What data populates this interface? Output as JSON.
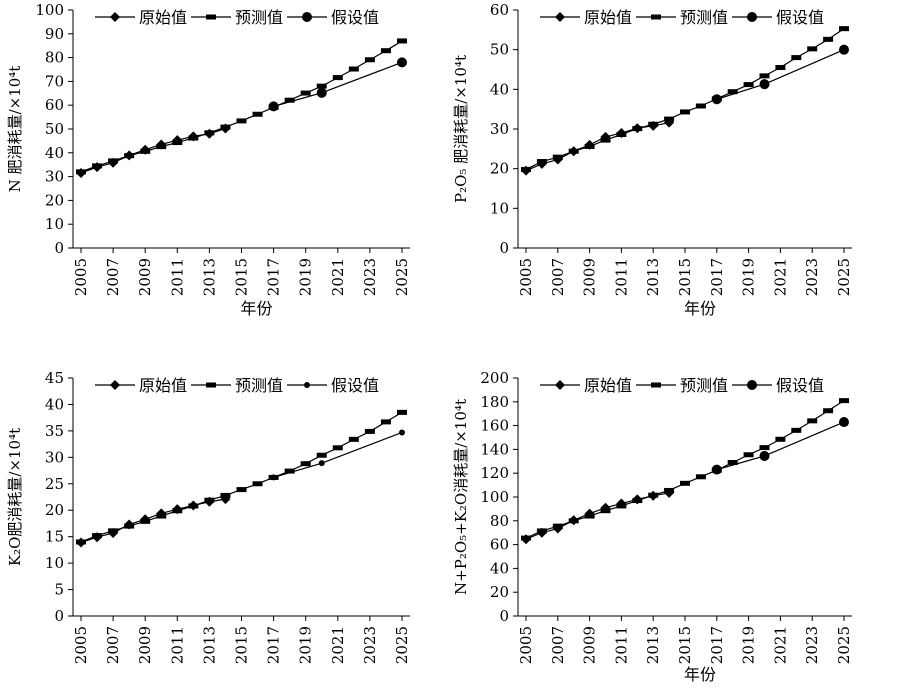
{
  "chart_data": [
    {
      "type": "line",
      "xlabel": "年份",
      "ylabel": "N 肥消耗量/×10⁴t",
      "ylim": [
        0,
        100
      ],
      "ytick_step": 10,
      "xticks": [
        "2005",
        "2007",
        "2009",
        "2011",
        "2013",
        "2015",
        "2017",
        "2019",
        "2021",
        "2023",
        "2025"
      ],
      "xlim": [
        2005,
        2025
      ],
      "legend": [
        "原始值",
        "预测值",
        "假设值"
      ],
      "series": [
        {
          "name": "原始值",
          "marker": "diamond",
          "x": [
            2005,
            2006,
            2007,
            2008,
            2009,
            2010,
            2011,
            2012,
            2013,
            2014
          ],
          "y": [
            31.5,
            34.0,
            35.8,
            38.9,
            41.3,
            43.5,
            45.3,
            46.9,
            48.0,
            50.2
          ]
        },
        {
          "name": "预测值",
          "marker": "dash",
          "x": [
            2005,
            2006,
            2007,
            2008,
            2009,
            2010,
            2011,
            2012,
            2013,
            2014,
            2015,
            2016,
            2017,
            2018,
            2019,
            2020,
            2021,
            2022,
            2023,
            2024,
            2025
          ],
          "y": [
            32.0,
            34.5,
            36.6,
            38.8,
            40.6,
            42.6,
            44.3,
            46.2,
            48.4,
            50.8,
            53.4,
            56.2,
            59.1,
            62.1,
            65.1,
            68.0,
            71.6,
            75.2,
            79.1,
            82.9,
            87.0
          ]
        },
        {
          "name": "假设值",
          "marker": "circle",
          "x": [
            2017,
            2020,
            2025
          ],
          "y": [
            59.5,
            65.2,
            78.0
          ]
        }
      ]
    },
    {
      "type": "line",
      "xlabel": "年份",
      "ylabel": "P₂O₅ 肥消耗量/×10⁴t",
      "ylim": [
        0,
        60
      ],
      "ytick_step": 10,
      "xticks": [
        "2005",
        "2007",
        "2009",
        "2011",
        "2013",
        "2015",
        "2017",
        "2019",
        "2021",
        "2023",
        "2025"
      ],
      "xlim": [
        2005,
        2025
      ],
      "legend": [
        "原始值",
        "预测值",
        "假设值"
      ],
      "series": [
        {
          "name": "原始值",
          "marker": "diamond",
          "x": [
            2005,
            2006,
            2007,
            2008,
            2009,
            2010,
            2011,
            2012,
            2013,
            2014
          ],
          "y": [
            19.5,
            21.2,
            22.3,
            24.4,
            26.0,
            28.0,
            29.0,
            30.2,
            30.8,
            31.6
          ]
        },
        {
          "name": "预测值",
          "marker": "dash",
          "x": [
            2005,
            2006,
            2007,
            2008,
            2009,
            2010,
            2011,
            2012,
            2013,
            2014,
            2015,
            2016,
            2017,
            2018,
            2019,
            2020,
            2021,
            2022,
            2023,
            2024,
            2025
          ],
          "y": [
            19.8,
            21.8,
            22.9,
            24.4,
            25.6,
            27.2,
            28.6,
            30.1,
            31.2,
            32.5,
            34.3,
            35.8,
            37.6,
            39.4,
            41.2,
            43.4,
            45.5,
            48.0,
            50.2,
            52.6,
            55.3
          ]
        },
        {
          "name": "假设值",
          "marker": "circle",
          "x": [
            2017,
            2020,
            2025
          ],
          "y": [
            37.5,
            41.3,
            50.0
          ]
        }
      ]
    },
    {
      "type": "line",
      "xlabel": "",
      "ylabel": "K₂O肥消耗量/×10⁴t",
      "ylim": [
        0,
        45
      ],
      "ytick_step": 5,
      "xticks": [
        "2005",
        "2007",
        "2009",
        "2011",
        "2013",
        "2015",
        "2017",
        "2019",
        "2021",
        "2023",
        "2025"
      ],
      "xlim": [
        2005,
        2025
      ],
      "legend": [
        "原始值",
        "预测值",
        "假设值"
      ],
      "series": [
        {
          "name": "原始值",
          "marker": "diamond",
          "x": [
            2005,
            2006,
            2007,
            2008,
            2009,
            2010,
            2011,
            2012,
            2013,
            2014
          ],
          "y": [
            13.9,
            14.9,
            15.7,
            17.3,
            18.3,
            19.4,
            20.2,
            20.9,
            21.6,
            22.1
          ]
        },
        {
          "name": "预测值",
          "marker": "dash",
          "x": [
            2005,
            2006,
            2007,
            2008,
            2009,
            2010,
            2011,
            2012,
            2013,
            2014,
            2015,
            2016,
            2017,
            2018,
            2019,
            2020,
            2021,
            2022,
            2023,
            2024,
            2025
          ],
          "y": [
            14.0,
            15.2,
            16.1,
            17.0,
            17.9,
            18.9,
            19.9,
            20.8,
            21.9,
            22.8,
            23.9,
            25.0,
            26.2,
            27.4,
            28.8,
            30.4,
            31.8,
            33.4,
            34.9,
            36.7,
            38.5
          ]
        },
        {
          "name": "假设值",
          "marker": "circle-small",
          "x": [
            2017,
            2020,
            2025
          ],
          "y": [
            26.2,
            28.9,
            34.7
          ]
        }
      ]
    },
    {
      "type": "line",
      "xlabel": "年份",
      "ylabel": "N+P₂O₅+K₂O消耗量/×10⁴t",
      "ylim": [
        0,
        200
      ],
      "ytick_step": 20,
      "xticks": [
        "2005",
        "2007",
        "2009",
        "2011",
        "2013",
        "2015",
        "2017",
        "2019",
        "2021",
        "2023",
        "2025"
      ],
      "xlim": [
        2005,
        2025
      ],
      "legend": [
        "原始值",
        "预测值",
        "假设值"
      ],
      "series": [
        {
          "name": "原始值",
          "marker": "diamond",
          "x": [
            2005,
            2006,
            2007,
            2008,
            2009,
            2010,
            2011,
            2012,
            2013,
            2014
          ],
          "y": [
            64.5,
            70.0,
            73.5,
            80.5,
            86.0,
            91.0,
            94.5,
            98.0,
            101.0,
            103.5
          ]
        },
        {
          "name": "预测值",
          "marker": "dash",
          "x": [
            2005,
            2006,
            2007,
            2008,
            2009,
            2010,
            2011,
            2012,
            2013,
            2014,
            2015,
            2016,
            2017,
            2018,
            2019,
            2020,
            2021,
            2022,
            2023,
            2024,
            2025
          ],
          "y": [
            65.5,
            71.5,
            75.5,
            80.0,
            84.0,
            88.5,
            92.5,
            97.0,
            101.5,
            105.5,
            111.5,
            117.0,
            122.5,
            129.0,
            135.5,
            141.5,
            148.5,
            156.0,
            164.0,
            172.5,
            181.0
          ]
        },
        {
          "name": "假设值",
          "marker": "circle",
          "x": [
            2017,
            2020,
            2025
          ],
          "y": [
            123.0,
            134.5,
            163.0
          ]
        }
      ]
    }
  ]
}
